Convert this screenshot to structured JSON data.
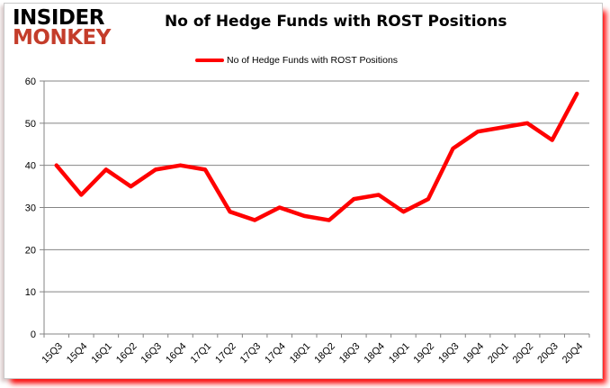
{
  "logo": {
    "line1": "INSIDER",
    "line2": "MONKEY",
    "color_line1": "#000000",
    "color_line2": "#c43d2b"
  },
  "header": {
    "title": "No of Hedge Funds with ROST Positions"
  },
  "legend": {
    "label": "No of Hedge Funds with ROST Positions",
    "swatch_color": "#ff0000"
  },
  "chart_data": {
    "type": "line",
    "title": "No of Hedge Funds with ROST Positions",
    "categories": [
      "15Q3",
      "15Q4",
      "16Q1",
      "16Q2",
      "16Q3",
      "16Q4",
      "17Q1",
      "17Q2",
      "17Q3",
      "17Q4",
      "18Q1",
      "18Q2",
      "18Q3",
      "18Q4",
      "19Q1",
      "19Q2",
      "19Q3",
      "19Q4",
      "20Q1",
      "20Q2",
      "20Q3",
      "20Q4"
    ],
    "series": [
      {
        "name": "No of Hedge Funds with ROST Positions",
        "color": "#ff0000",
        "values": [
          40,
          33,
          39,
          35,
          39,
          40,
          39,
          29,
          27,
          30,
          28,
          27,
          32,
          33,
          29,
          32,
          44,
          48,
          49,
          50,
          46,
          57
        ]
      }
    ],
    "xlabel": "",
    "ylabel": "",
    "ylim": [
      0,
      60
    ],
    "yticks": [
      0,
      10,
      20,
      30,
      40,
      50,
      60
    ],
    "grid": true,
    "gridline_color": "#848484",
    "legend_position": "top"
  }
}
